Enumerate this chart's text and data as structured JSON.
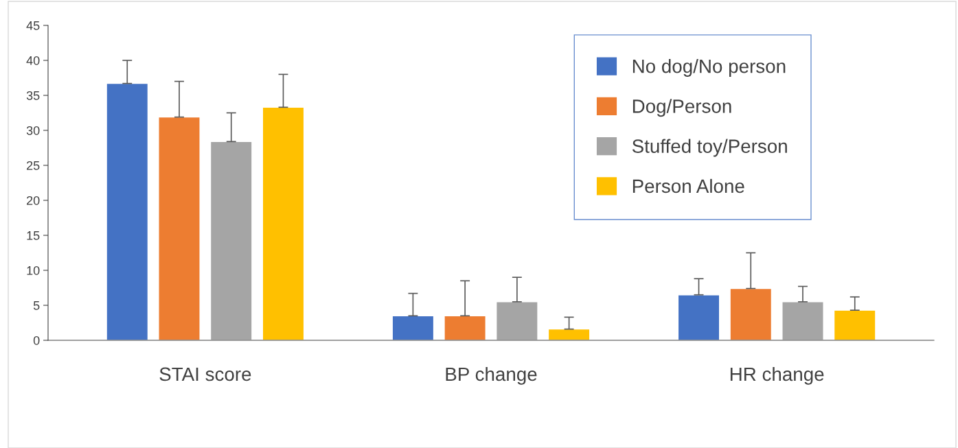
{
  "chart_data": {
    "type": "bar",
    "categories": [
      "STAI score",
      "BP change",
      "HR change"
    ],
    "series": [
      {
        "name": "No dog/No person",
        "color": "#4472c4",
        "values": [
          36.7,
          3.5,
          6.5
        ],
        "errors": [
          [
            36.7,
            40.0
          ],
          [
            3.5,
            6.7
          ],
          [
            6.5,
            8.8
          ]
        ]
      },
      {
        "name": "Dog/Person",
        "color": "#ed7d31",
        "values": [
          31.9,
          3.5,
          7.4
        ],
        "errors": [
          [
            31.9,
            37.0
          ],
          [
            3.5,
            8.5
          ],
          [
            7.4,
            12.5
          ]
        ]
      },
      {
        "name": "Stuffed toy/Person",
        "color": "#a5a5a5",
        "values": [
          28.4,
          5.5,
          5.5
        ],
        "errors": [
          [
            28.4,
            32.5
          ],
          [
            5.5,
            9.0
          ],
          [
            5.5,
            7.7
          ]
        ]
      },
      {
        "name": "Person Alone",
        "color": "#ffc000",
        "values": [
          33.3,
          1.6,
          4.3
        ],
        "errors": [
          [
            33.3,
            38.0
          ],
          [
            1.6,
            3.3
          ],
          [
            4.3,
            6.2
          ]
        ]
      }
    ],
    "ylim": [
      0,
      45
    ],
    "yticks": [
      0,
      5,
      10,
      15,
      20,
      25,
      30,
      35,
      40,
      45
    ],
    "grid": false,
    "legend": "top right"
  }
}
